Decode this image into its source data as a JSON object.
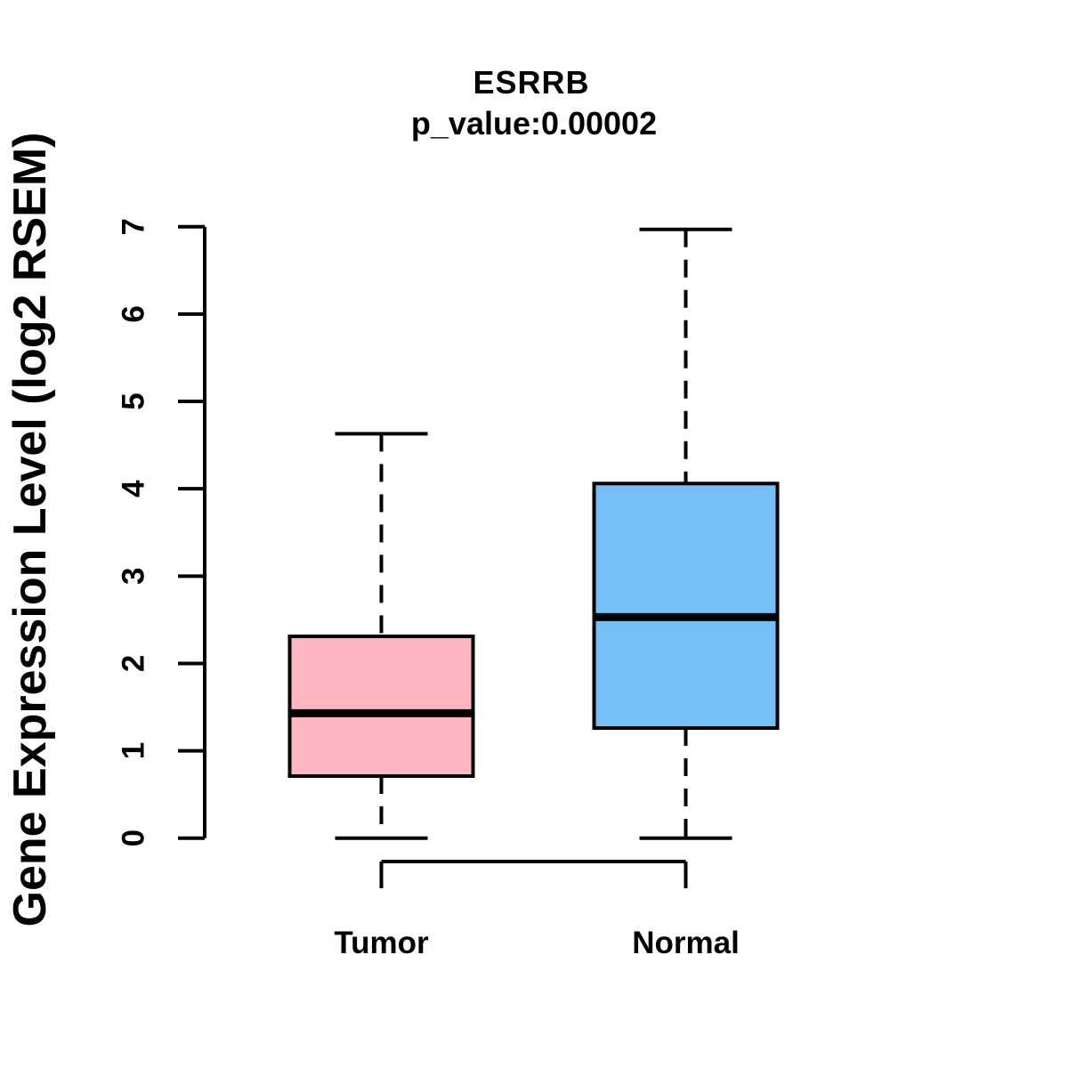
{
  "chart_data": {
    "type": "boxplot",
    "title": "ESRRB",
    "subtitle": "p_value:0.00002",
    "p_value": "0.00002",
    "gene": "ESRRB",
    "ylabel": "Gene Expression Level (log2 RSEM)",
    "xlabel": "",
    "ylim": [
      0,
      7
    ],
    "yticks": [
      0,
      1,
      2,
      3,
      4,
      5,
      6,
      7
    ],
    "categories": [
      "Tumor",
      "Normal"
    ],
    "series": [
      {
        "name": "Tumor",
        "box_color": "#FFB6C1",
        "min": 0,
        "q1": 0.71,
        "median": 1.43,
        "q3": 2.31,
        "max": 4.63
      },
      {
        "name": "Normal",
        "box_color": "#74BFF7",
        "min": 0,
        "q1": 1.26,
        "median": 2.53,
        "q3": 4.06,
        "max": 6.97
      }
    ],
    "line_color": "#000000",
    "background_color": "#FFFFFF",
    "whisker_style": "dashed",
    "grid": false,
    "legend": false
  }
}
